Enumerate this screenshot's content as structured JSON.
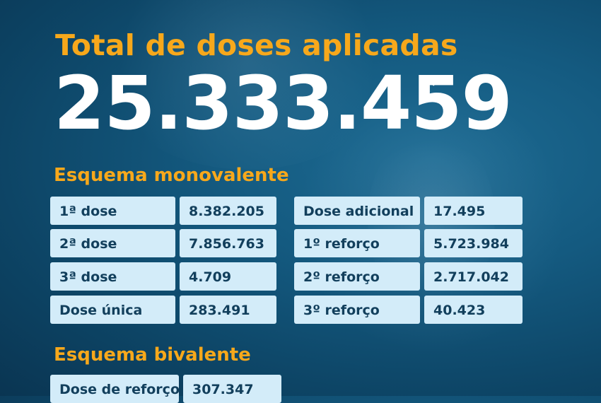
{
  "title": "Total de doses aplicadas",
  "total": "25.333.459",
  "asterisk": "*",
  "monovalente": {
    "title": "Esquema monovalente",
    "left": [
      {
        "label": "1ª dose",
        "value": "8.382.205"
      },
      {
        "label": "2ª dose",
        "value": "7.856.763"
      },
      {
        "label": "3ª dose",
        "value": "4.709"
      },
      {
        "label": "Dose única",
        "value": "283.491"
      }
    ],
    "right": [
      {
        "label": "Dose adicional",
        "value": "17.495"
      },
      {
        "label": "1º reforço",
        "value": "5.723.984"
      },
      {
        "label": "2º reforço",
        "value": "2.717.042"
      },
      {
        "label": "3º reforço",
        "value": "40.423"
      }
    ]
  },
  "bivalente": {
    "title": "Esquema bivalente",
    "rows": [
      {
        "label": "Dose de reforço",
        "value": "307.347"
      }
    ]
  }
}
